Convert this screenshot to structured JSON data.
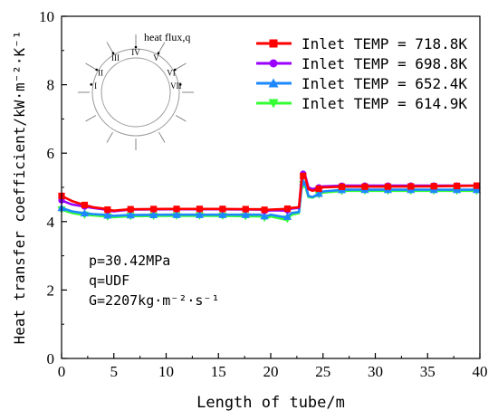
{
  "chart_data": {
    "type": "line",
    "xlabel": "Length of tube/m",
    "ylabel": "Heat transfer coefficient/kW·m⁻²·K⁻¹",
    "xlim": [
      0,
      40
    ],
    "ylim": [
      0,
      10
    ],
    "x_ticks": [
      "0",
      "5",
      "10",
      "15",
      "20",
      "25",
      "30",
      "35",
      "40"
    ],
    "y_ticks": [
      "0",
      "2",
      "4",
      "6",
      "8",
      "10"
    ],
    "grid": false,
    "legend_position": "top-right",
    "series": [
      {
        "name": "Inlet TEMP = 718.8K",
        "color": "#ff0000",
        "marker": "square",
        "x": [
          0,
          1,
          2,
          3,
          4,
          4.5,
          5,
          6.5,
          10,
          15,
          19,
          19.5,
          20,
          21.5,
          22,
          22.7,
          23,
          23.3,
          23.6,
          24,
          25,
          27,
          30,
          35,
          40
        ],
        "y": [
          4.75,
          4.6,
          4.5,
          4.42,
          4.38,
          4.34,
          4.32,
          4.36,
          4.37,
          4.37,
          4.36,
          4.34,
          4.35,
          4.37,
          4.4,
          4.42,
          5.35,
          5.3,
          4.95,
          4.9,
          5.0,
          5.02,
          5.02,
          5.03,
          5.05
        ]
      },
      {
        "name": "Inlet TEMP = 698.8K",
        "color": "#9900ff",
        "marker": "circle",
        "x": [
          0,
          1,
          2,
          3,
          4,
          4.5,
          5,
          6.5,
          10,
          15,
          19,
          19.5,
          20,
          21.5,
          22,
          22.7,
          23,
          23.3,
          23.6,
          24,
          25,
          27,
          30,
          35,
          40
        ],
        "y": [
          4.62,
          4.5,
          4.45,
          4.4,
          4.36,
          4.32,
          4.3,
          4.35,
          4.36,
          4.36,
          4.35,
          4.3,
          4.33,
          4.32,
          4.38,
          4.4,
          5.42,
          5.35,
          5.0,
          4.95,
          5.03,
          5.05,
          5.05,
          5.05,
          5.05
        ]
      },
      {
        "name": "Inlet TEMP = 652.4K",
        "color": "#1e88ff",
        "marker": "triangle-up",
        "x": [
          0,
          1,
          2,
          3,
          4,
          4.5,
          5,
          6.5,
          10,
          15,
          19,
          19.5,
          20,
          21.5,
          22,
          22.7,
          23,
          23.3,
          23.6,
          24,
          25,
          27,
          30,
          35,
          40
        ],
        "y": [
          4.4,
          4.3,
          4.25,
          4.22,
          4.2,
          4.18,
          4.17,
          4.19,
          4.2,
          4.2,
          4.2,
          4.15,
          4.2,
          4.12,
          4.25,
          4.28,
          5.15,
          5.12,
          4.75,
          4.72,
          4.88,
          4.93,
          4.93,
          4.93,
          4.93
        ]
      },
      {
        "name": "Inlet TEMP = 614.9K",
        "color": "#33ff33",
        "marker": "triangle-down",
        "x": [
          0,
          1,
          2,
          3,
          4,
          4.5,
          5,
          6.5,
          10,
          15,
          19,
          19.5,
          20,
          21.5,
          22,
          22.7,
          23,
          23.3,
          23.6,
          24,
          25,
          27,
          30,
          35,
          40
        ],
        "y": [
          4.35,
          4.25,
          4.2,
          4.18,
          4.16,
          4.14,
          4.13,
          4.16,
          4.17,
          4.17,
          4.15,
          4.1,
          4.15,
          4.05,
          4.2,
          4.25,
          5.1,
          5.05,
          4.72,
          4.7,
          4.85,
          4.9,
          4.9,
          4.9,
          4.9
        ]
      }
    ],
    "annotations": {
      "conditions": [
        "p=30.42MPa",
        "q=UDF",
        "G=2207kg·m⁻²·s⁻¹"
      ],
      "inset_label": "heat flux,q",
      "inset_sectors": [
        "I",
        "II",
        "III",
        "IV",
        "V",
        "VI",
        "VII"
      ]
    }
  }
}
